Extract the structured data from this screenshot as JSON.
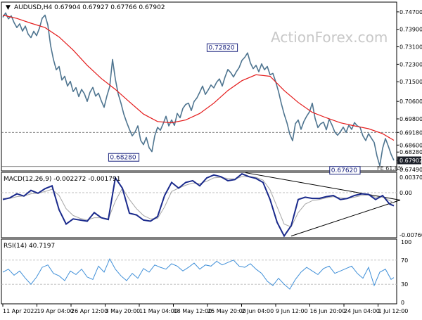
{
  "header": {
    "symbol_line": "AUDUSD,H4  0.67904 0.67927 0.67766 0.67902",
    "watermark": "ActionForex.com"
  },
  "colors": {
    "price": "#4f7590",
    "ma": "#e41b1b",
    "macd": "#1a2a8c",
    "signal": "#a6a6a6",
    "rsi": "#3f8fd8",
    "label_box": "#1a237e",
    "current_price_bg": "#1b1f28"
  },
  "chart_data": [
    {
      "type": "line",
      "panel": "price",
      "title": "AUDUSD,H4  0.67904 0.67927 0.67766 0.67902",
      "ylim": [
        0.6745,
        0.7505
      ],
      "x_tick_labels": [
        "11 Apr 2022",
        "19 Apr 04:00",
        "26 Apr 12:00",
        "3 May 20:00",
        "11 May 04:00",
        "18 May 12:00",
        "25 May 20:00",
        "2 Jun 04:00",
        "9 Jun 12:00",
        "16 Jun 20:00",
        "24 Jun 04:00",
        "1 Jul 12:00"
      ],
      "y_ticks": [
        0.6749,
        0.679,
        0.6828,
        0.686,
        0.6918,
        0.698,
        0.706,
        0.715,
        0.723,
        0.731,
        0.739,
        0.747
      ],
      "y_tick_labels": [
        "0.67490",
        "0.67902",
        "0.68280",
        "0.68600",
        "0.69180",
        "0.69800",
        "0.70600",
        "0.71500",
        "0.72300",
        "0.73100",
        "0.73900",
        "0.74700"
      ],
      "series": [
        {
          "key": "price",
          "x": [
            0,
            4,
            8,
            12,
            16,
            20,
            24,
            28,
            32,
            36,
            40,
            44,
            48,
            52,
            56,
            60,
            64,
            68,
            72,
            76,
            80,
            84,
            88,
            92,
            96,
            100,
            104,
            108,
            112,
            116,
            120,
            124,
            128,
            132,
            136,
            140,
            144,
            148,
            152,
            156,
            160,
            164,
            168,
            172,
            176,
            180,
            184,
            188,
            192,
            196,
            200,
            204,
            208,
            212,
            216,
            220,
            224,
            228,
            232,
            236,
            240,
            244,
            248,
            252,
            256,
            260,
            264,
            268,
            272,
            276,
            280,
            284,
            288,
            292,
            296,
            300,
            304,
            308,
            312,
            316,
            320,
            324,
            328,
            332,
            336,
            340,
            344,
            348,
            352,
            356,
            360,
            364,
            368,
            372,
            376,
            380,
            384,
            388,
            392,
            396,
            400,
            404,
            408,
            412,
            416,
            420,
            424,
            428,
            432,
            436,
            440,
            444,
            448,
            452,
            456,
            460,
            464,
            468,
            472,
            476,
            480,
            484,
            488,
            492,
            496,
            500,
            504,
            508,
            512,
            516,
            520,
            524,
            528,
            532,
            536,
            540,
            544,
            548,
            552,
            556
          ],
          "values": [
            0.7445,
            0.7465,
            0.7438,
            0.7452,
            0.7421,
            0.7398,
            0.7415,
            0.7382,
            0.7405,
            0.7368,
            0.7352,
            0.7381,
            0.7361,
            0.7395,
            0.7441,
            0.7455,
            0.741,
            0.7315,
            0.7252,
            0.7205,
            0.722,
            0.7158,
            0.7175,
            0.713,
            0.7152,
            0.7105,
            0.7123,
            0.7082,
            0.7115,
            0.7095,
            0.706,
            0.7102,
            0.7124,
            0.7084,
            0.7098,
            0.7063,
            0.7033,
            0.7085,
            0.7128,
            0.7252,
            0.7162,
            0.7095,
            0.7052,
            0.7002,
            0.6965,
            0.6932,
            0.6902,
            0.692,
            0.6948,
            0.6882,
            0.6862,
            0.6895,
            0.6848,
            0.683,
            0.6902,
            0.6941,
            0.6928,
            0.6958,
            0.6992,
            0.6948,
            0.6975,
            0.695,
            0.7005,
            0.6985,
            0.7028,
            0.7046,
            0.7052,
            0.7018,
            0.706,
            0.7076,
            0.7102,
            0.713,
            0.7092,
            0.7112,
            0.7135,
            0.7122,
            0.7148,
            0.7163,
            0.713,
            0.7172,
            0.7206,
            0.7192,
            0.7172,
            0.7196,
            0.7215,
            0.7248,
            0.7262,
            0.7282,
            0.7236,
            0.721,
            0.7225,
            0.7196,
            0.7232,
            0.7205,
            0.722,
            0.7182,
            0.7188,
            0.715,
            0.7105,
            0.705,
            0.7002,
            0.6962,
            0.691,
            0.688,
            0.6958,
            0.6975,
            0.6932,
            0.6968,
            0.6992,
            0.7012,
            0.7052,
            0.6982,
            0.694,
            0.6958,
            0.6965,
            0.693,
            0.6978,
            0.6952,
            0.692,
            0.6905,
            0.6921,
            0.6942,
            0.6918,
            0.6951,
            0.6932,
            0.6963,
            0.6948,
            0.6941,
            0.6902,
            0.6881,
            0.6912,
            0.6892,
            0.6872,
            0.681,
            0.6765,
            0.6845,
            0.689,
            0.6856,
            0.6818,
            0.679
          ]
        },
        {
          "key": "ma",
          "x": [
            0,
            20,
            40,
            60,
            80,
            100,
            120,
            140,
            160,
            180,
            200,
            220,
            240,
            260,
            280,
            300,
            320,
            340,
            360,
            380,
            400,
            420,
            440,
            460,
            480,
            500,
            520,
            540,
            556
          ],
          "values": [
            0.7455,
            0.744,
            0.7418,
            0.7398,
            0.7355,
            0.7295,
            0.7225,
            0.7165,
            0.7115,
            0.7058,
            0.7002,
            0.6968,
            0.6962,
            0.6975,
            0.7005,
            0.7052,
            0.711,
            0.7155,
            0.7182,
            0.7175,
            0.711,
            0.7055,
            0.701,
            0.6985,
            0.6962,
            0.6948,
            0.6935,
            0.6912,
            0.6882
          ]
        }
      ],
      "labels": [
        {
          "text": "0.72820",
          "at": [
            312,
            0.7282
          ]
        },
        {
          "text": "0.68280",
          "at": [
            172,
            0.6828
          ]
        },
        {
          "text": "0.67620",
          "at": [
            500,
            0.6762
          ]
        },
        {
          "text": "FE 61.8%",
          "at": [
            535,
            0.6762
          ]
        }
      ],
      "hlines": [
        0.6918,
        0.6762
      ],
      "current_price": {
        "value": 0.67902,
        "label": "0.67902"
      }
    },
    {
      "type": "line",
      "panel": "macd",
      "title": "MACD(12,26,9) -0.002272 -0.001791",
      "ylim": [
        -0.00765,
        0.0032
      ],
      "y_tick_labels": [
        "0.003703",
        "0.00",
        "-0.007608"
      ],
      "series": [
        {
          "key": "macd",
          "x": [
            0,
            10,
            20,
            30,
            40,
            50,
            60,
            70,
            80,
            90,
            100,
            110,
            120,
            130,
            140,
            150,
            160,
            170,
            180,
            190,
            200,
            210,
            220,
            230,
            240,
            250,
            260,
            270,
            280,
            290,
            300,
            310,
            320,
            330,
            340,
            350,
            360,
            370,
            380,
            390,
            400,
            410,
            420,
            430,
            440,
            450,
            460,
            470,
            480,
            490,
            500,
            510,
            520,
            530,
            540,
            550,
            556
          ],
          "values": [
            -0.0012,
            -0.0009,
            -0.0002,
            -0.0006,
            0.0004,
            -0.0001,
            0.0007,
            0.0012,
            -0.003,
            -0.0055,
            -0.0046,
            -0.0048,
            -0.005,
            -0.0035,
            -0.0044,
            -0.0047,
            0.0026,
            0.0008,
            -0.0036,
            -0.0039,
            -0.0048,
            -0.005,
            -0.0042,
            -0.0005,
            0.0018,
            0.0008,
            0.0018,
            0.0021,
            0.0012,
            0.0026,
            0.0031,
            0.0028,
            0.0021,
            0.0023,
            0.0033,
            0.0028,
            0.0025,
            0.0018,
            -0.0012,
            -0.0052,
            -0.0076,
            -0.0058,
            -0.0012,
            -0.0008,
            -0.001,
            -0.001,
            -0.0007,
            -0.0005,
            -0.0012,
            -0.001,
            -0.0005,
            -0.0002,
            -0.0003,
            -0.0012,
            -0.0005,
            -0.002,
            -0.0023
          ]
        },
        {
          "key": "signal",
          "x": [
            0,
            10,
            20,
            30,
            40,
            50,
            60,
            70,
            80,
            90,
            100,
            110,
            120,
            130,
            140,
            150,
            160,
            170,
            180,
            190,
            200,
            210,
            220,
            230,
            240,
            250,
            260,
            270,
            280,
            290,
            300,
            310,
            320,
            330,
            340,
            350,
            360,
            370,
            380,
            390,
            400,
            410,
            420,
            430,
            440,
            450,
            460,
            470,
            480,
            490,
            500,
            510,
            520,
            530,
            540,
            550,
            556
          ],
          "values": [
            -0.001,
            -0.001,
            -0.0007,
            -0.0006,
            -0.0002,
            -0.0001,
            0.0002,
            0.0006,
            -0.0005,
            -0.0028,
            -0.004,
            -0.0045,
            -0.0048,
            -0.0044,
            -0.0044,
            -0.0046,
            -0.0015,
            0.0008,
            -0.0012,
            -0.0028,
            -0.004,
            -0.0046,
            -0.0045,
            -0.0025,
            0.0002,
            0.0008,
            0.0013,
            0.0017,
            0.0016,
            0.002,
            0.0026,
            0.0027,
            0.0025,
            0.0024,
            0.0028,
            0.0028,
            0.0027,
            0.0022,
            0.0005,
            -0.0025,
            -0.0055,
            -0.006,
            -0.0035,
            -0.002,
            -0.0014,
            -0.0012,
            -0.0009,
            -0.0007,
            -0.0009,
            -0.001,
            -0.0008,
            -0.0005,
            -0.0004,
            -0.0008,
            -0.0007,
            -0.0014,
            -0.0018
          ]
        }
      ],
      "trendlines": [
        {
          "from": [
            345,
            0.0035
          ],
          "to": [
            565,
            -0.0013
          ]
        },
        {
          "from": [
            410,
            -0.0076
          ],
          "to": [
            565,
            -0.0013
          ]
        }
      ]
    },
    {
      "type": "line",
      "panel": "rsi",
      "title": "RSI(14) 40.7197",
      "ylim": [
        0,
        100
      ],
      "y_ticks": [
        100,
        70,
        30,
        0
      ],
      "y_tick_labels": [
        "100",
        "70",
        "30",
        "0"
      ],
      "series": [
        {
          "key": "rsi",
          "x": [
            0,
            8,
            16,
            24,
            32,
            40,
            48,
            56,
            64,
            72,
            80,
            88,
            96,
            104,
            112,
            120,
            128,
            136,
            144,
            152,
            160,
            168,
            176,
            184,
            192,
            200,
            208,
            216,
            224,
            232,
            240,
            248,
            256,
            264,
            272,
            280,
            288,
            296,
            304,
            312,
            320,
            328,
            336,
            344,
            352,
            360,
            368,
            376,
            384,
            392,
            400,
            408,
            416,
            424,
            432,
            440,
            448,
            456,
            464,
            472,
            480,
            488,
            496,
            504,
            512,
            520,
            528,
            536,
            544,
            552,
            556
          ],
          "values": [
            50,
            55,
            45,
            52,
            40,
            30,
            42,
            58,
            62,
            48,
            44,
            36,
            52,
            46,
            55,
            42,
            38,
            60,
            50,
            72,
            55,
            44,
            36,
            48,
            40,
            56,
            50,
            62,
            58,
            55,
            64,
            60,
            52,
            58,
            65,
            55,
            62,
            60,
            68,
            62,
            66,
            70,
            60,
            58,
            64,
            55,
            48,
            35,
            28,
            40,
            30,
            22,
            38,
            50,
            58,
            52,
            46,
            56,
            60,
            48,
            52,
            56,
            60,
            48,
            40,
            58,
            28,
            50,
            55,
            38,
            41
          ]
        }
      ]
    }
  ]
}
